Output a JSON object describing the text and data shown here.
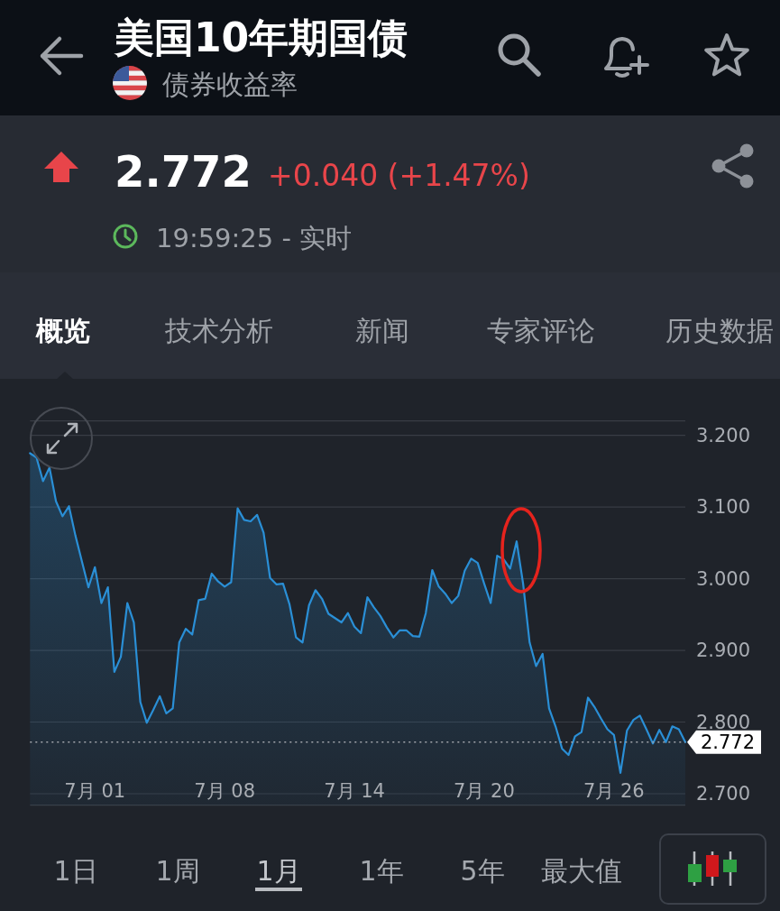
{
  "chart_data": {
    "type": "area",
    "title": "美国10年期国债",
    "subtitle": "债券收益率",
    "categories": [
      null,
      null,
      null,
      null,
      null,
      null,
      null,
      null,
      null,
      null,
      "7月 01",
      null,
      null,
      null,
      null,
      null,
      null,
      null,
      null,
      null,
      null,
      null,
      null,
      null,
      null,
      null,
      null,
      null,
      null,
      null,
      "7月 08",
      null,
      null,
      null,
      null,
      null,
      null,
      null,
      null,
      null,
      null,
      null,
      null,
      null,
      null,
      null,
      null,
      null,
      null,
      null,
      "7月 14",
      null,
      null,
      null,
      null,
      null,
      null,
      null,
      null,
      null,
      null,
      null,
      null,
      null,
      null,
      null,
      null,
      null,
      null,
      null,
      "7月 20",
      null,
      null,
      null,
      null,
      null,
      null,
      null,
      null,
      null,
      null,
      null,
      null,
      null,
      null,
      null,
      null,
      null,
      null,
      null,
      "7月 26",
      null,
      null,
      null,
      null,
      null,
      null,
      null,
      null,
      null,
      null,
      null
    ],
    "values": [
      3.175,
      3.169,
      3.136,
      3.155,
      3.108,
      3.087,
      3.101,
      3.06,
      3.024,
      2.988,
      3.016,
      2.966,
      2.988,
      2.87,
      2.891,
      2.966,
      2.939,
      2.828,
      2.799,
      2.817,
      2.836,
      2.812,
      2.819,
      2.911,
      2.93,
      2.922,
      2.97,
      2.972,
      3.007,
      2.996,
      2.989,
      2.995,
      3.098,
      3.082,
      3.08,
      3.089,
      3.064,
      3.001,
      2.992,
      2.993,
      2.964,
      2.918,
      2.911,
      2.963,
      2.984,
      2.972,
      2.951,
      2.945,
      2.939,
      2.952,
      2.933,
      2.924,
      2.974,
      2.96,
      2.948,
      2.932,
      2.918,
      2.928,
      2.928,
      2.92,
      2.919,
      2.952,
      3.012,
      2.989,
      2.979,
      2.966,
      2.976,
      3.011,
      3.028,
      3.022,
      2.993,
      2.966,
      3.032,
      3.027,
      3.014,
      3.052,
      2.993,
      2.911,
      2.878,
      2.895,
      2.819,
      2.794,
      2.763,
      2.754,
      2.78,
      2.786,
      2.834,
      2.821,
      2.805,
      2.79,
      2.782,
      2.729,
      2.788,
      2.803,
      2.809,
      2.79,
      2.77,
      2.789,
      2.772,
      2.794,
      2.79,
      2.772
    ],
    "color": "#2a8fd6",
    "ylim": [
      2.684,
      3.22
    ],
    "yticks": [
      {
        "value": 2.7,
        "label": "2.700"
      },
      {
        "value": 2.8,
        "label": "2.800"
      },
      {
        "value": 2.9,
        "label": "2.900"
      },
      {
        "value": 3.0,
        "label": "3.000"
      },
      {
        "value": 3.1,
        "label": "3.100"
      },
      {
        "value": 3.2,
        "label": "3.200"
      }
    ],
    "grid": "y",
    "ref_lines": [
      {
        "axis": "y",
        "value": 2.772,
        "label": "2.772",
        "color": "#a0a4aa",
        "line_style": "dotted"
      }
    ],
    "annotations": [
      "2.772",
      "+0.040 (+1.47%)",
      "19:59:25 - 实时",
      "概览",
      "技术分析",
      "新闻",
      "专家评论",
      "历史数据",
      "1日",
      "1周",
      "1月",
      "1年",
      "5年",
      "最大值"
    ]
  }
}
